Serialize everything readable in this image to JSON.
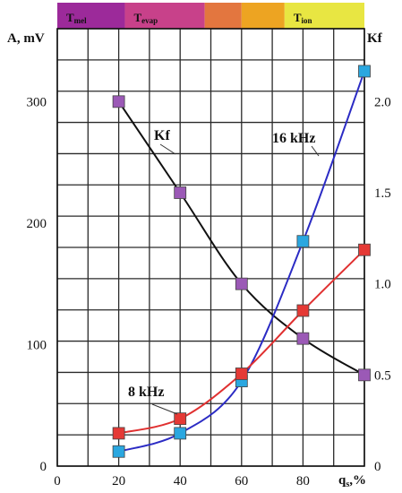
{
  "chart_data": {
    "type": "line",
    "xlabel_main": "q",
    "xlabel_sub": "s",
    "xlabel_tail": ",%",
    "ylabel": "A, mV",
    "y2label": "Kf",
    "xlim": [
      0,
      100
    ],
    "ylim": [
      0,
      360
    ],
    "y2lim": [
      0,
      2.4
    ],
    "x_ticks": [
      "0",
      "20",
      "40",
      "60",
      "80"
    ],
    "x_tick_values": [
      0,
      20,
      40,
      60,
      80
    ],
    "y_ticks": [
      "0",
      "100",
      "200",
      "300"
    ],
    "y_tick_values": [
      0,
      100,
      200,
      300
    ],
    "y2_ticks": [
      "0",
      "0.5",
      "1.0",
      "1.5",
      "2.0"
    ],
    "y2_tick_values": [
      0,
      0.5,
      1.0,
      1.5,
      2.0
    ],
    "grid": true,
    "regime_bands": [
      {
        "label": "T",
        "sub": "mel",
        "x0": 0,
        "x1": 22,
        "color": "#9c2a9a"
      },
      {
        "label": "T",
        "sub": "evap",
        "x0": 22,
        "x1": 48,
        "color": "#c8418a"
      },
      {
        "label": "",
        "sub": "",
        "x0": 48,
        "x1": 60,
        "color": "#e3763f"
      },
      {
        "label": "",
        "sub": "",
        "x0": 60,
        "x1": 74,
        "color": "#eda422"
      },
      {
        "label": "T",
        "sub": "ion",
        "x0": 74,
        "x1": 100,
        "color": "#e8e642"
      }
    ],
    "series": [
      {
        "name": "Kf",
        "axis": "right",
        "color": "#111111",
        "marker_color": "#9b59b6",
        "x": [
          20,
          40,
          60,
          80,
          100
        ],
        "values": [
          2.0,
          1.5,
          1.0,
          0.7,
          0.5
        ]
      },
      {
        "name": "16  kHz",
        "axis": "left",
        "color": "#2b2bc4",
        "marker_color": "#2aa7e0",
        "x": [
          20,
          40,
          60,
          80,
          100
        ],
        "values": [
          12,
          27,
          70,
          185,
          325
        ]
      },
      {
        "name": "8  kHz",
        "axis": "left",
        "color": "#e03030",
        "marker_color": "#e53935",
        "x": [
          20,
          40,
          60,
          80,
          100
        ],
        "values": [
          27,
          39,
          76,
          128,
          178
        ]
      }
    ],
    "annotations": [
      {
        "text": "Kf",
        "series": "Kf"
      },
      {
        "text": "16  kHz",
        "series": "16  kHz"
      },
      {
        "text": "8  kHz",
        "series": "8  kHz"
      }
    ]
  }
}
